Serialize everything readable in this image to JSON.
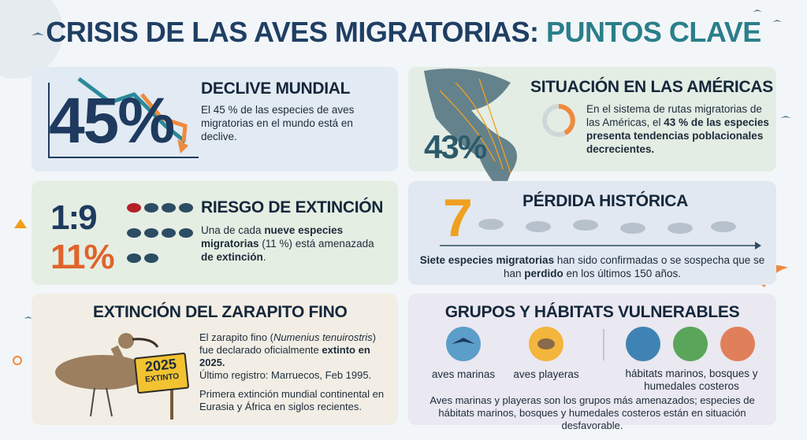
{
  "header": {
    "title_main": "CRISIS DE LAS AVES MIGRATORIAS:",
    "title_accent": "PUNTOS CLAVE"
  },
  "cards": [
    {
      "stat": "45%",
      "heading": "DECLIVE MUNDIAL",
      "body": [
        "El 45 % de las especies de aves migratorias en el mundo está en declive."
      ]
    },
    {
      "stat": "43%",
      "heading": "SITUACIÓN EN LAS AMÉRICAS",
      "body": [
        "En el sistema de rutas migratorias de las Américas, el ",
        "43 % de las especies presenta tendencias poblacionales decrecientes."
      ]
    },
    {
      "ratio": "1:9",
      "stat": "11%",
      "heading": "RIESGO DE EXTINCIÓN",
      "body": [
        "Una de cada ",
        "nueve especies migratorias",
        " (11 %) está amenazada ",
        "de extinción",
        "."
      ]
    },
    {
      "stat": "7",
      "heading": "PÉRDIDA HISTÓRICA",
      "body": [
        "Siete especies migratorias",
        " han sido confirmadas o se sospecha que se han ",
        "perdido",
        " en los últimos 150 años."
      ]
    },
    {
      "heading": "EXTINCIÓN DEL ZARAPITO FINO",
      "sign_year": "2025",
      "sign_text": "EXTINTO",
      "body": [
        "El zarapito fino (",
        "Numenius tenuirostris",
        ") fue declarado oficialmente ",
        "extinto en 2025."
      ],
      "record": "Último registro: Marruecos, Feb 1995.",
      "note": "Primera extinción mundial continental en Eurasia y África en siglos recientes."
    },
    {
      "heading": "GRUPOS Y HÁBITATS VULNERABLES",
      "groups": [
        "aves marinas",
        "aves playeras",
        "hábitats marinos, bosques y humedales costeros"
      ],
      "body": [
        "Aves marinas y playeras son los grupos más amenazados; especies de hábitats marinos, bosques y humedales costeros están en situación desfavorable."
      ]
    }
  ]
}
